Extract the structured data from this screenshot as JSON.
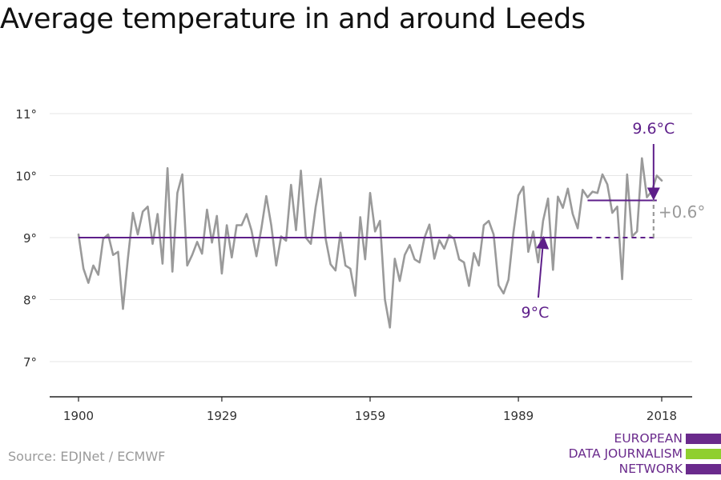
{
  "title": "Average temperature in and around Leeds",
  "source": "Source: EDJNet / ECMWF",
  "logo": {
    "lines": [
      "EUROPEAN",
      "DATA JOURNALISM",
      "NETWORK"
    ],
    "bar_colors": [
      "#6a2a8c",
      "#8fcf2e",
      "#6a2a8c"
    ]
  },
  "colors": {
    "series": "#9a9a9a",
    "accent": "#5e1f8a",
    "delta": "#9a9a9a",
    "grid": "#e6e6e6"
  },
  "chart_data": {
    "type": "line",
    "title": "Average temperature in and around Leeds",
    "xlabel": "",
    "ylabel": "",
    "xlim": [
      1900,
      2018
    ],
    "ylim": [
      6.7,
      11.3
    ],
    "x_ticks": [
      {
        "value": 1900,
        "label": "1900"
      },
      {
        "value": 1929,
        "label": "1929"
      },
      {
        "value": 1959,
        "label": "1959"
      },
      {
        "value": 1989,
        "label": "1989"
      },
      {
        "value": 2018,
        "label": "2018"
      }
    ],
    "y_ticks": [
      {
        "value": 7,
        "label": "7°"
      },
      {
        "value": 8,
        "label": "8°"
      },
      {
        "value": 9,
        "label": "9°"
      },
      {
        "value": 10,
        "label": "10°"
      },
      {
        "value": 11,
        "label": "11°"
      }
    ],
    "grid": true,
    "series": [
      {
        "start_year": 1900,
        "values": [
          9.05,
          8.5,
          8.27,
          8.55,
          8.4,
          8.98,
          9.05,
          8.72,
          8.77,
          7.85,
          8.67,
          9.4,
          9.05,
          9.42,
          9.5,
          8.9,
          9.38,
          8.58,
          10.12,
          8.45,
          9.72,
          10.02,
          8.55,
          8.72,
          8.93,
          8.74,
          9.45,
          8.92,
          9.35,
          8.42,
          9.2,
          8.68,
          9.2,
          9.2,
          9.38,
          9.12,
          8.7,
          9.15,
          9.67,
          9.2,
          8.55,
          9.02,
          8.95,
          9.85,
          9.12,
          10.08,
          9.0,
          8.9,
          9.5,
          9.95,
          8.98,
          8.57,
          8.47,
          9.08,
          8.55,
          8.5,
          8.06,
          9.33,
          8.65,
          9.72,
          9.1,
          9.27,
          8.0,
          7.55,
          8.66,
          8.3,
          8.72,
          8.88,
          8.65,
          8.6,
          9.0,
          9.21,
          8.66,
          8.96,
          8.82,
          9.04,
          8.98,
          8.65,
          8.6,
          8.22,
          8.75,
          8.55,
          9.2,
          9.27,
          9.05,
          8.23,
          8.1,
          8.32,
          9.08,
          9.68,
          9.82,
          8.77,
          9.1,
          8.6,
          9.27,
          9.63,
          8.48,
          9.66,
          9.48,
          9.79,
          9.38,
          9.15,
          9.77,
          9.65,
          9.74,
          9.72,
          10.02,
          9.86,
          9.4,
          9.5,
          8.33,
          10.02,
          9.02,
          9.1,
          10.28,
          9.65,
          9.75,
          10.0,
          9.92
        ]
      }
    ],
    "baseline": {
      "value": 9,
      "from": 1900,
      "to": 2003,
      "dashed_to": 2017,
      "label": "9°C",
      "label_year": 1994
    },
    "recent": {
      "value": 9.6,
      "from": 2003,
      "to": 2017,
      "label": "9.6°C",
      "label_year": 2017
    },
    "delta": {
      "year": 2017,
      "from": 9,
      "to": 9.6,
      "label": "+0.6°"
    }
  }
}
